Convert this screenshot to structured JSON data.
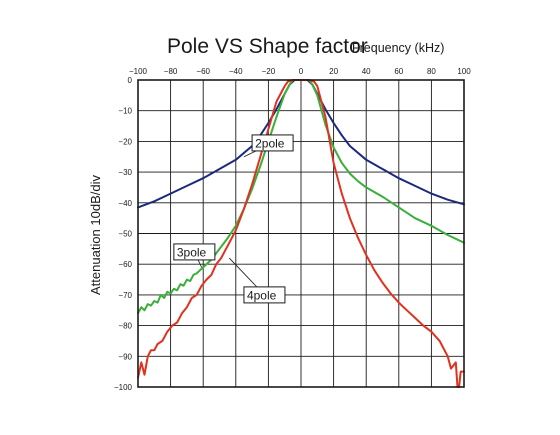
{
  "chart_data": {
    "type": "line",
    "title": "Pole VS Shape factor",
    "xlabel": "Frequency (kHz)",
    "ylabel": "Attenuation  10dB/div",
    "xlim": [
      -100,
      100
    ],
    "ylim": [
      -100,
      0
    ],
    "grid": true,
    "x_ticks": [
      "−100",
      "−80",
      "−60",
      "−40",
      "−20",
      "0",
      "20",
      "40",
      "60",
      "80",
      "100"
    ],
    "y_ticks": [
      "0",
      "−10",
      "−20",
      "−30",
      "−40",
      "−50",
      "−60",
      "−70",
      "−80",
      "−90",
      "−100"
    ],
    "x_tick_values": [
      -100,
      -80,
      -60,
      -40,
      -20,
      0,
      20,
      40,
      60,
      80,
      100
    ],
    "y_tick_values": [
      0,
      -10,
      -20,
      -30,
      -40,
      -50,
      -60,
      -70,
      -80,
      -90,
      -100
    ],
    "series": [
      {
        "name": "2pole",
        "color": "#1c2a7d",
        "x": [
          -100,
          -90,
          -80,
          -70,
          -60,
          -50,
          -40,
          -30,
          -25,
          -20,
          -15,
          -10,
          -7,
          -4,
          0,
          4,
          7,
          10,
          15,
          20,
          25,
          30,
          40,
          50,
          60,
          70,
          80,
          90,
          100
        ],
        "y": [
          -41.5,
          -39.5,
          -37,
          -34.5,
          -32,
          -29,
          -26,
          -21.5,
          -18,
          -14,
          -9.5,
          -4.5,
          -1.5,
          0,
          0,
          0,
          -1.5,
          -4.5,
          -9.5,
          -14,
          -18,
          -21.5,
          -26,
          -29,
          -32,
          -34.5,
          -37,
          -39,
          -40.5
        ]
      },
      {
        "name": "3pole",
        "color": "#3aaf3a",
        "x": [
          -100,
          -98,
          -96,
          -94,
          -92,
          -90,
          -88,
          -86,
          -84,
          -82,
          -80,
          -78,
          -76,
          -74,
          -72,
          -70,
          -68,
          -66,
          -64,
          -62,
          -60,
          -55,
          -50,
          -45,
          -40,
          -35,
          -30,
          -25,
          -20,
          -15,
          -10,
          -7,
          -5,
          0,
          5,
          7,
          10,
          15,
          20,
          25,
          30,
          35,
          40,
          50,
          60,
          70,
          80,
          90,
          100
        ],
        "y": [
          -76,
          -74,
          -75,
          -73,
          -73.5,
          -72,
          -72.5,
          -70,
          -71,
          -69,
          -69.5,
          -68,
          -68.5,
          -66.5,
          -67,
          -65,
          -65.5,
          -63.5,
          -63,
          -62,
          -61,
          -58.5,
          -55,
          -51.5,
          -47.5,
          -42,
          -35.5,
          -28,
          -20,
          -12,
          -4.5,
          -1.5,
          0,
          0,
          0,
          -1.5,
          -5,
          -14.5,
          -22,
          -27,
          -30.5,
          -33,
          -35,
          -38,
          -41.5,
          -45,
          -47.5,
          -50.5,
          -53
        ]
      },
      {
        "name": "4pole",
        "color": "#e0321e",
        "x": [
          -100,
          -98,
          -96,
          -94,
          -92,
          -90,
          -88,
          -85,
          -82,
          -79,
          -76,
          -73,
          -70,
          -67,
          -64,
          -61,
          -58,
          -55,
          -52,
          -49,
          -45,
          -40,
          -35,
          -30,
          -25,
          -20,
          -15,
          -10,
          -8,
          -5,
          0,
          5,
          8,
          10,
          15,
          20,
          25,
          30,
          35,
          40,
          45,
          50,
          55,
          60,
          65,
          70,
          75,
          80,
          85,
          90,
          92,
          95,
          96,
          97,
          98,
          100
        ],
        "y": [
          -97,
          -92,
          -96,
          -90,
          -88,
          -88,
          -86,
          -85,
          -82,
          -80,
          -79,
          -76,
          -74,
          -71,
          -70,
          -67,
          -65,
          -63.5,
          -60,
          -58,
          -54,
          -49,
          -42,
          -34,
          -25,
          -16,
          -7,
          -2,
          -0.5,
          0,
          0,
          0,
          -0.5,
          -2,
          -12,
          -27,
          -37,
          -45,
          -51.5,
          -57,
          -62,
          -66,
          -69.5,
          -72.5,
          -75,
          -77.5,
          -80,
          -82,
          -85,
          -90,
          -94,
          -92,
          -100,
          -100,
          -95,
          -95
        ]
      }
    ],
    "annotations": [
      {
        "text": "2pole",
        "color": "#1c2a7d",
        "target": [
          -35,
          -25
        ],
        "label_at": [
          -30,
          -20.5
        ]
      },
      {
        "text": "3pole",
        "color": "#3aaf3a",
        "target": [
          -61,
          -61
        ],
        "label_at": [
          -78,
          -56
        ]
      },
      {
        "text": "4pole",
        "color": "#e0321e",
        "target": [
          -44,
          -58
        ],
        "label_at": [
          -35,
          -70
        ]
      }
    ]
  }
}
